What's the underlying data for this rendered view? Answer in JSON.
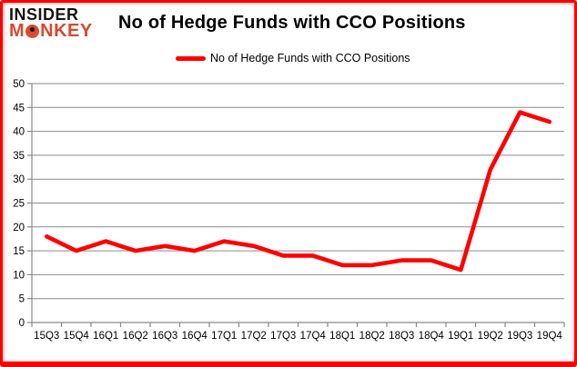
{
  "logo": {
    "line1": "INSIDER",
    "line2_prefix": "M",
    "line2_suffix": "NKEY"
  },
  "header": {
    "title": "No of Hedge Funds with CCO Positions"
  },
  "legend": {
    "label": "No of Hedge Funds with CCO Positions"
  },
  "colors": {
    "accent_red": "#ff0000",
    "logo_red": "#d8492f",
    "logo_black": "#141414",
    "gridline": "#8a8a8a",
    "axis": "#8a8a8a",
    "text": "#000000",
    "frame_border": "#fb0000",
    "background": "#ffffff"
  },
  "chart_data": {
    "type": "line",
    "title": "No of Hedge Funds with CCO Positions",
    "categories": [
      "15Q3",
      "15Q4",
      "16Q1",
      "16Q2",
      "16Q3",
      "16Q4",
      "17Q1",
      "17Q2",
      "17Q3",
      "17Q4",
      "18Q1",
      "18Q2",
      "18Q3",
      "18Q4",
      "19Q1",
      "19Q2",
      "19Q3",
      "19Q4"
    ],
    "series": [
      {
        "name": "No of Hedge Funds with CCO Positions",
        "color": "#ff0000",
        "values": [
          18,
          15,
          17,
          15,
          16,
          15,
          17,
          16,
          14,
          14,
          12,
          12,
          13,
          13,
          11,
          32,
          44,
          42
        ]
      }
    ],
    "xlabel": "",
    "ylabel": "",
    "ylim": [
      0,
      50
    ],
    "ytick_step": 5,
    "grid": true,
    "legend_position": "top-center"
  }
}
